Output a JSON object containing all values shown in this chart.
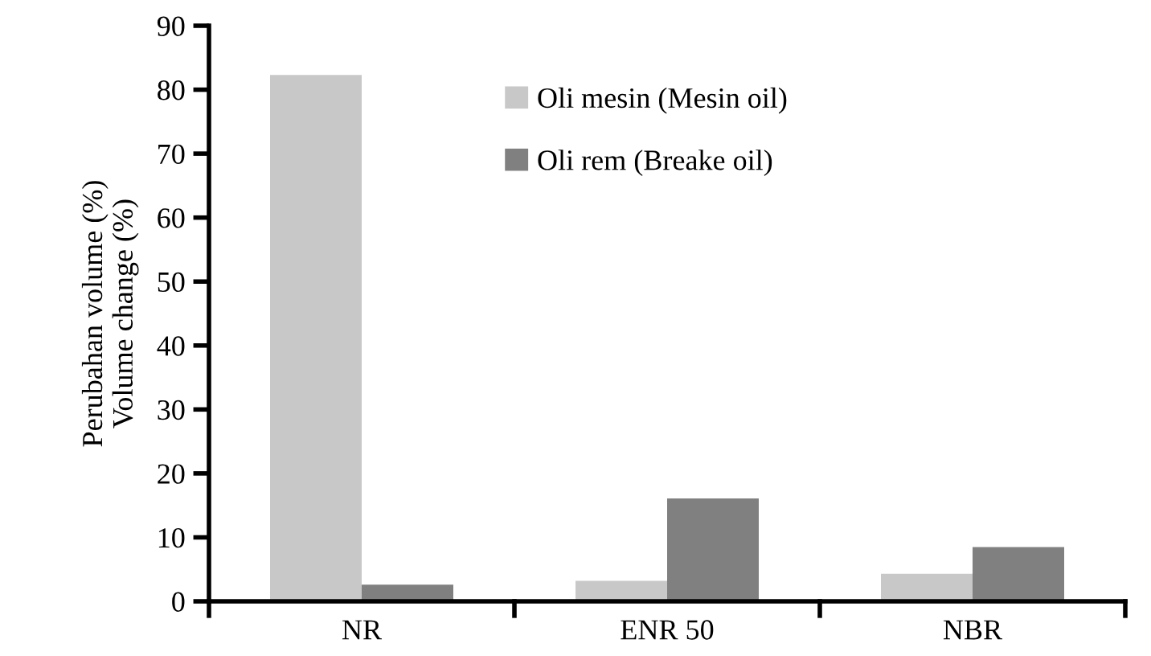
{
  "chart_data": {
    "type": "bar",
    "ylabel": "Perubahan volume (%)\nVolume change (%)",
    "categories": [
      "NR",
      "ENR 50",
      "NBR"
    ],
    "series": [
      {
        "name": "Oli mesin (Mesin oil)",
        "color": "#c8c8c8",
        "values": [
          82.3,
          3.2,
          4.3
        ]
      },
      {
        "name": "Oli rem (Breake oil)",
        "color": "#808080",
        "values": [
          2.6,
          16.1,
          8.5
        ]
      }
    ],
    "ylim": [
      0,
      90
    ],
    "yticks": [
      0,
      10,
      20,
      30,
      40,
      50,
      60,
      70,
      80,
      90
    ],
    "grid": false,
    "legend": "top right"
  }
}
